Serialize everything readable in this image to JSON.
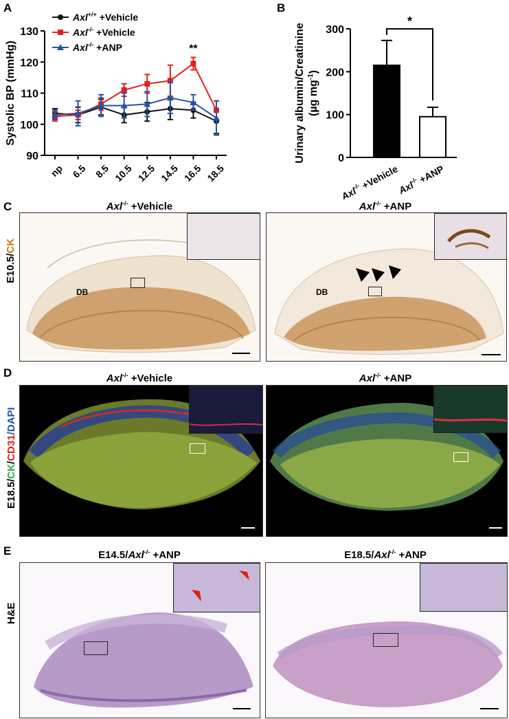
{
  "panels": {
    "a": {
      "letter": "A"
    },
    "b": {
      "letter": "B"
    },
    "c": {
      "letter": "C",
      "row_label_1": "E10.5/",
      "row_label_2": "CK",
      "left_title_gene": "Axl",
      "left_title_sup": "-/-",
      "left_title_rest": " +Vehicle",
      "right_title_gene": "Axl",
      "right_title_sup": "-/-",
      "right_title_rest": " +ANP",
      "db_label": "DB"
    },
    "d": {
      "letter": "D",
      "row_label_1": "E18.5/",
      "row_label_2": "CK",
      "row_label_3": "/",
      "row_label_4": "CD31",
      "row_label_5": "/DAPI",
      "left_title_gene": "Axl",
      "left_title_sup": "-/-",
      "left_title_rest": " +Vehicle",
      "right_title_gene": "Axl",
      "right_title_sup": "-/-",
      "right_title_rest": " +ANP"
    },
    "e": {
      "letter": "E",
      "row_label": "H&E",
      "left_title_pre": "E14.5/",
      "left_title_gene": "Axl",
      "left_title_sup": "-/-",
      "left_title_rest": " +ANP",
      "right_title_pre": "E18.5/",
      "right_title_gene": "Axl",
      "right_title_sup": "-/-",
      "right_title_rest": " +ANP"
    }
  },
  "chart_data": [
    {
      "type": "line",
      "ylabel": "Systolic BP (mmHg)",
      "x": [
        "np",
        "6.5",
        "8.5",
        "10.5",
        "12.5",
        "14.5",
        "16.5",
        "18.5"
      ],
      "ylim": [
        90,
        130
      ],
      "yticks": [
        90,
        100,
        110,
        120,
        130
      ],
      "annotation": "**",
      "annotation_at": "16.5",
      "series": [
        {
          "name_gene": "Axl",
          "name_sup": "+/+",
          "name_rest": " +Vehicle",
          "color": "#111111",
          "marker": "circle",
          "values": [
            103.5,
            103,
            105.5,
            103,
            104,
            105,
            104.5,
            101
          ],
          "errors": [
            1.5,
            2.5,
            2.5,
            2.5,
            3,
            3.5,
            2.5,
            4
          ]
        },
        {
          "name_gene": "Axl",
          "name_sup": "-/-",
          "name_rest": " +Vehicle",
          "color": "#e0201b",
          "marker": "square",
          "values": [
            102.5,
            103,
            106.5,
            111,
            113,
            114,
            119.5,
            104.5
          ],
          "errors": [
            1.5,
            1.5,
            2,
            2,
            3,
            5,
            2,
            3
          ]
        },
        {
          "name_gene": "Axl",
          "name_sup": "-/-",
          "name_rest": " +ANP",
          "color": "#2553a5",
          "marker": "triangle",
          "values": [
            103,
            103.5,
            106,
            106,
            106.5,
            108.5,
            107,
            102
          ],
          "errors": [
            1.5,
            4,
            3.5,
            4,
            4,
            5,
            2.5,
            5.5
          ]
        }
      ]
    },
    {
      "type": "bar",
      "ylabel_line1": "Urinary albumin/Creatinine",
      "ylabel_line2_pre": "(µg mg",
      "ylabel_line2_sup": "-1",
      "ylabel_line2_post": ")",
      "categories": [
        {
          "gene": "Axl",
          "sup": "-/-",
          "rest": " +Vehicle"
        },
        {
          "gene": "Axl",
          "sup": "-/-",
          "rest": " +ANP"
        }
      ],
      "values": [
        215,
        95
      ],
      "errors": [
        58,
        22
      ],
      "fills": [
        "#000000",
        "#ffffff"
      ],
      "ylim": [
        0,
        300
      ],
      "yticks": [
        0,
        100,
        200,
        300
      ],
      "annotation": "*"
    }
  ]
}
